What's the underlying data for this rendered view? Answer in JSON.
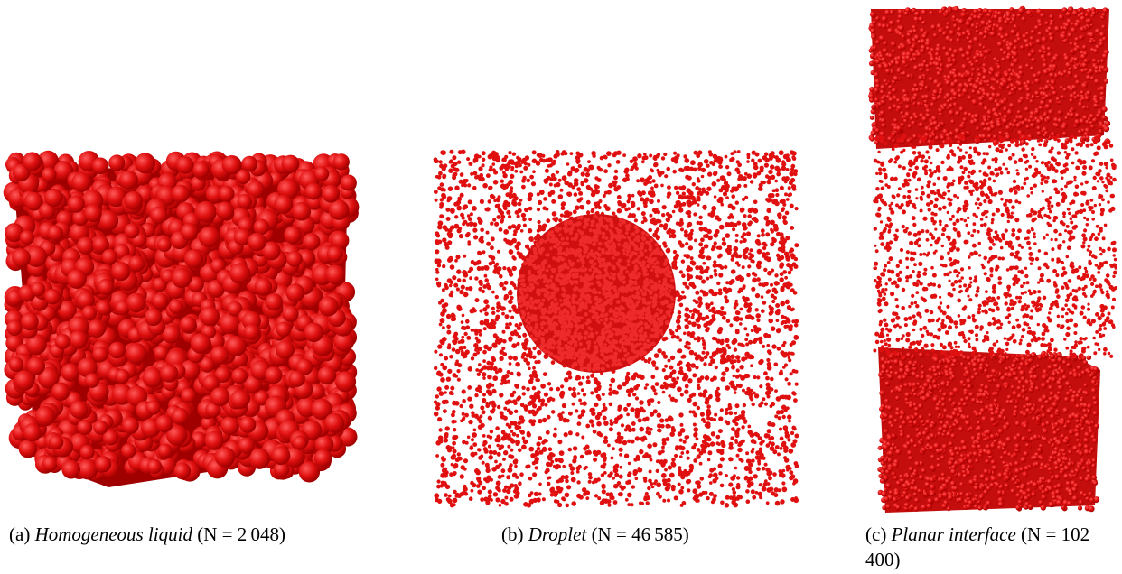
{
  "figure": {
    "panels": [
      {
        "label": "(a)",
        "title": "Homogeneous liquid",
        "eq_left": "(N = ",
        "value": "2 048",
        "eq_right": ")"
      },
      {
        "label": "(b)",
        "title": "Droplet",
        "eq_left": "(N = ",
        "value": "46 585",
        "eq_right": ")"
      },
      {
        "label": "(c)",
        "title": "Planar interface",
        "eq_left": "(N = ",
        "value": "102 400",
        "eq_right": ")"
      }
    ],
    "colors": {
      "sphere": "#e01010",
      "sphere_highlight": "#ff5a5a",
      "sphere_shadow": "#a00000",
      "background": "#ffffff"
    }
  }
}
